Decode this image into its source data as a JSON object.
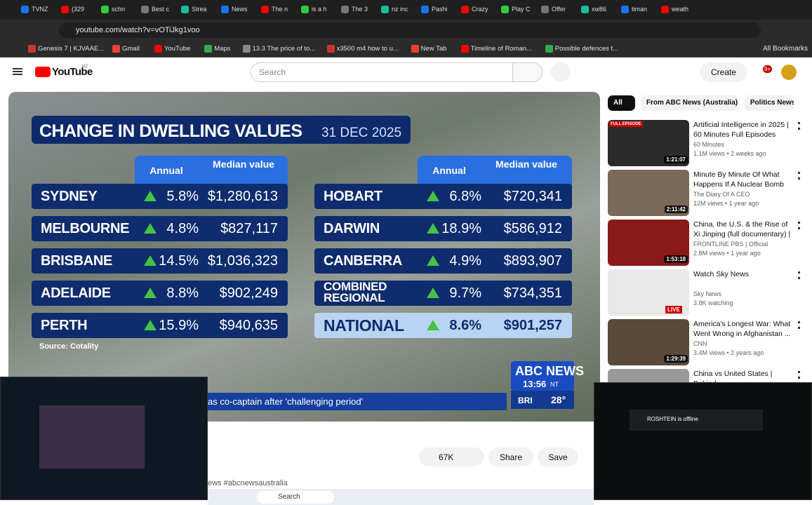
{
  "browser": {
    "tabs": [
      "TVNZ",
      "(329",
      "schn",
      "Best c",
      "Strea",
      "News",
      "The n",
      "is a h",
      "The 3",
      "nz inc",
      "Pashi",
      "Crazy",
      "Play C",
      "Offer",
      "xw86",
      "timan",
      "weath"
    ],
    "url": "youtube.com/watch?v=vOTiJkg1voo",
    "bookmarks": [
      "Genesis 7 | KJVAAE...",
      "Gmail",
      "YouTube",
      "Maps",
      "13.3 The price of to...",
      "x3500 m4 how to u...",
      "New Tab",
      "Timeline of Roman...",
      "Possible defences t..."
    ],
    "all_bookmarks": "All Bookmarks"
  },
  "header": {
    "logo": "YouTube",
    "region": "NZ",
    "search": "Search",
    "create": "Create",
    "notifications": "9+"
  },
  "video": {
    "title": "CHANGE IN DWELLING VALUES",
    "date": "31 DEC 2025",
    "columns": [
      "Annual",
      "Median value"
    ],
    "left_rows": [
      [
        "SYDNEY",
        "5.8%",
        "$1,280,613"
      ],
      [
        "MELBOURNE",
        "4.8%",
        "$827,117"
      ],
      [
        "BRISBANE",
        "14.5%",
        "$1,036,323"
      ],
      [
        "ADELAIDE",
        "8.8%",
        "$902,249"
      ],
      [
        "PERTH",
        "15.9%",
        "$940,635"
      ]
    ],
    "right_rows": [
      [
        "HOBART",
        "6.8%",
        "$720,341"
      ],
      [
        "DARWIN",
        "18.9%",
        "$586,912"
      ],
      [
        "CANBERRA",
        "4.9%",
        "$893,907"
      ],
      [
        "COMBINED REGIONAL",
        "9.7%",
        "$734,351"
      ],
      [
        "NATIONAL",
        "8.6%",
        "$901,257"
      ]
    ],
    "source": "Source: Cotality",
    "network": "ABC NEWS",
    "time": "13:56",
    "zone": "NT",
    "ticker": "as co-captain after 'challenging period'",
    "city": "BRI",
    "temperature": "28°"
  },
  "actions": {
    "likes": "67K",
    "share": "Share",
    "save": "Save",
    "description": "ews #abcnewsaustralia"
  },
  "sidebar": {
    "chips": [
      "All",
      "From ABC News (Australia)",
      "Politics News"
    ],
    "items": [
      {
        "title": "Artificial Intelligence in 2025 | 60 Minutes Full Episodes",
        "channel": "60 Minutes",
        "meta": "1.1M views • 2 weeks ago",
        "duration": "1:21:07",
        "badge": "FULL EPISODE"
      },
      {
        "title": "Minute By Minute Of What Happens If A Nuclear Bomb ...",
        "channel": "The Diary Of A CEO",
        "meta": "12M views • 1 year ago",
        "duration": "2:11:42"
      },
      {
        "title": "China, the U.S. & the Rise of Xi Jinping (full documentary) | ...",
        "channel": "FRONTLINE PBS | Official",
        "meta": "2.8M views • 1 year ago",
        "duration": "1:53:18"
      },
      {
        "title": "Watch Sky News",
        "channel": "Sky News",
        "meta": "3.8K watching",
        "badge": "LIVE"
      },
      {
        "title": "America's Longest War: What Went Wrong in Afghanistan ...",
        "channel": "CNN",
        "meta": "3.4M views • 2 years ago",
        "duration": "1:29:39"
      },
      {
        "title": "China vs United States | Behind ..."
      }
    ]
  },
  "overlay": {
    "stream_status": "ROSHTEIN is offline"
  },
  "taskbar": {
    "search": "Search"
  }
}
